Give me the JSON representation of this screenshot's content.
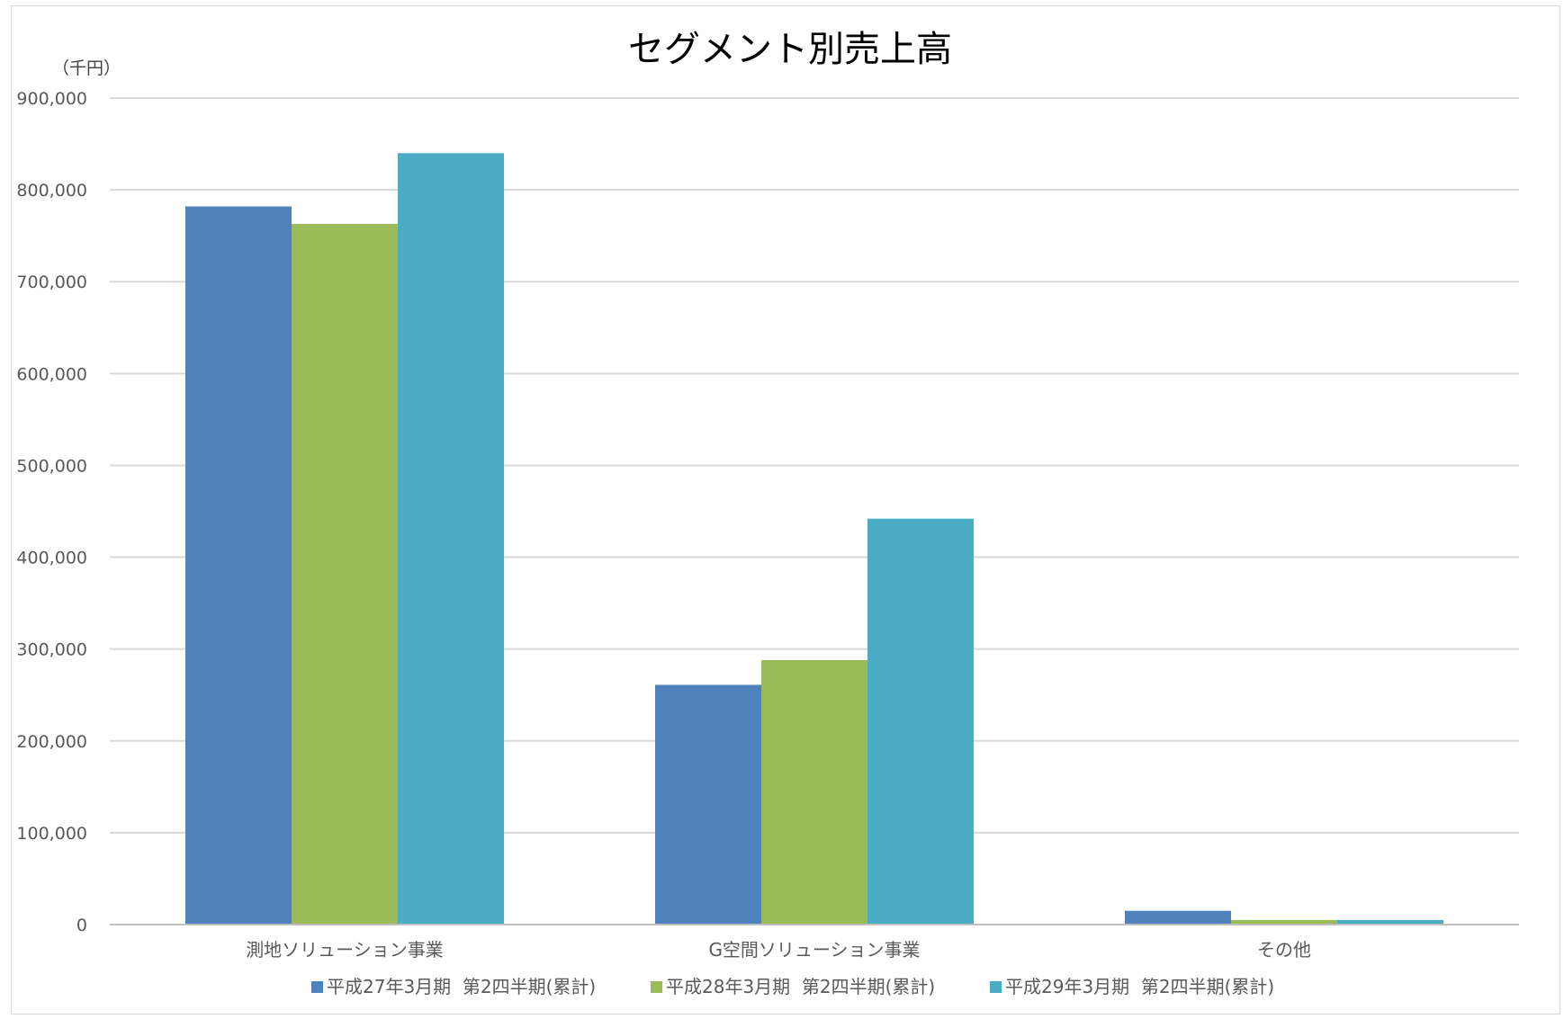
{
  "chart_data": {
    "type": "bar",
    "title": "セグメント別売上高",
    "ylabel": "（千円）",
    "xlabel": "",
    "ylim": [
      0,
      900000
    ],
    "ytick_step": 100000,
    "ytick_labels": [
      "0",
      "100,000",
      "200,000",
      "300,000",
      "400,000",
      "500,000",
      "600,000",
      "700,000",
      "800,000",
      "900,000"
    ],
    "grid": true,
    "legend_position": "bottom",
    "categories": [
      "測地ソリューション事業",
      "G空間ソリューション事業",
      "その他"
    ],
    "series": [
      {
        "name": "平成27年3月期  第2四半期(累計)",
        "color": "#4f81bd",
        "values": [
          782000,
          261000,
          15000
        ]
      },
      {
        "name": "平成28年3月期  第2四半期(累計)",
        "color": "#9bbb59",
        "values": [
          763000,
          288000,
          5000
        ]
      },
      {
        "name": "平成29年3月期  第2四半期(累計)",
        "color": "#4bacc6",
        "values": [
          840000,
          442000,
          5000
        ]
      }
    ]
  }
}
